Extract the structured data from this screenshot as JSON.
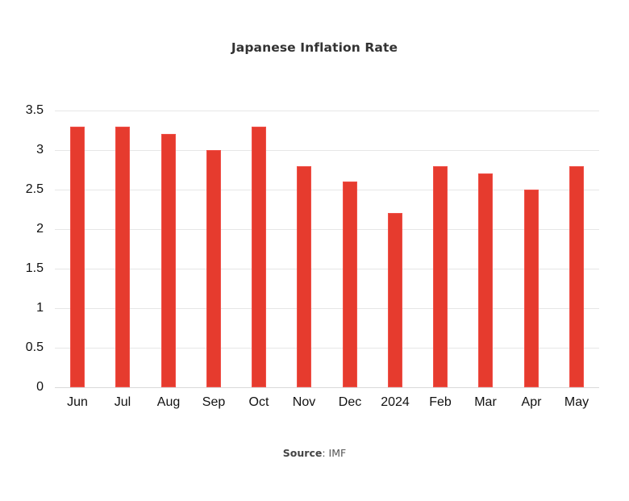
{
  "chart_data": {
    "type": "bar",
    "title": "Japanese Inflation Rate",
    "categories": [
      "Jun",
      "Jul",
      "Aug",
      "Sep",
      "Oct",
      "Nov",
      "Dec",
      "2024",
      "Feb",
      "Mar",
      "Apr",
      "May"
    ],
    "values": [
      3.3,
      3.3,
      3.2,
      3.0,
      3.3,
      2.8,
      2.6,
      2.2,
      2.8,
      2.7,
      2.5,
      2.8
    ],
    "xlabel": "",
    "ylabel": "",
    "ylim": [
      0,
      3.5
    ],
    "yticks": [
      "0",
      "0.5",
      "1",
      "1.5",
      "2",
      "2.5",
      "3",
      "3.5"
    ],
    "grid": true,
    "legend": null,
    "bar_color": "#e63b2e",
    "source_label": "Source",
    "source_value": ": IMF"
  }
}
